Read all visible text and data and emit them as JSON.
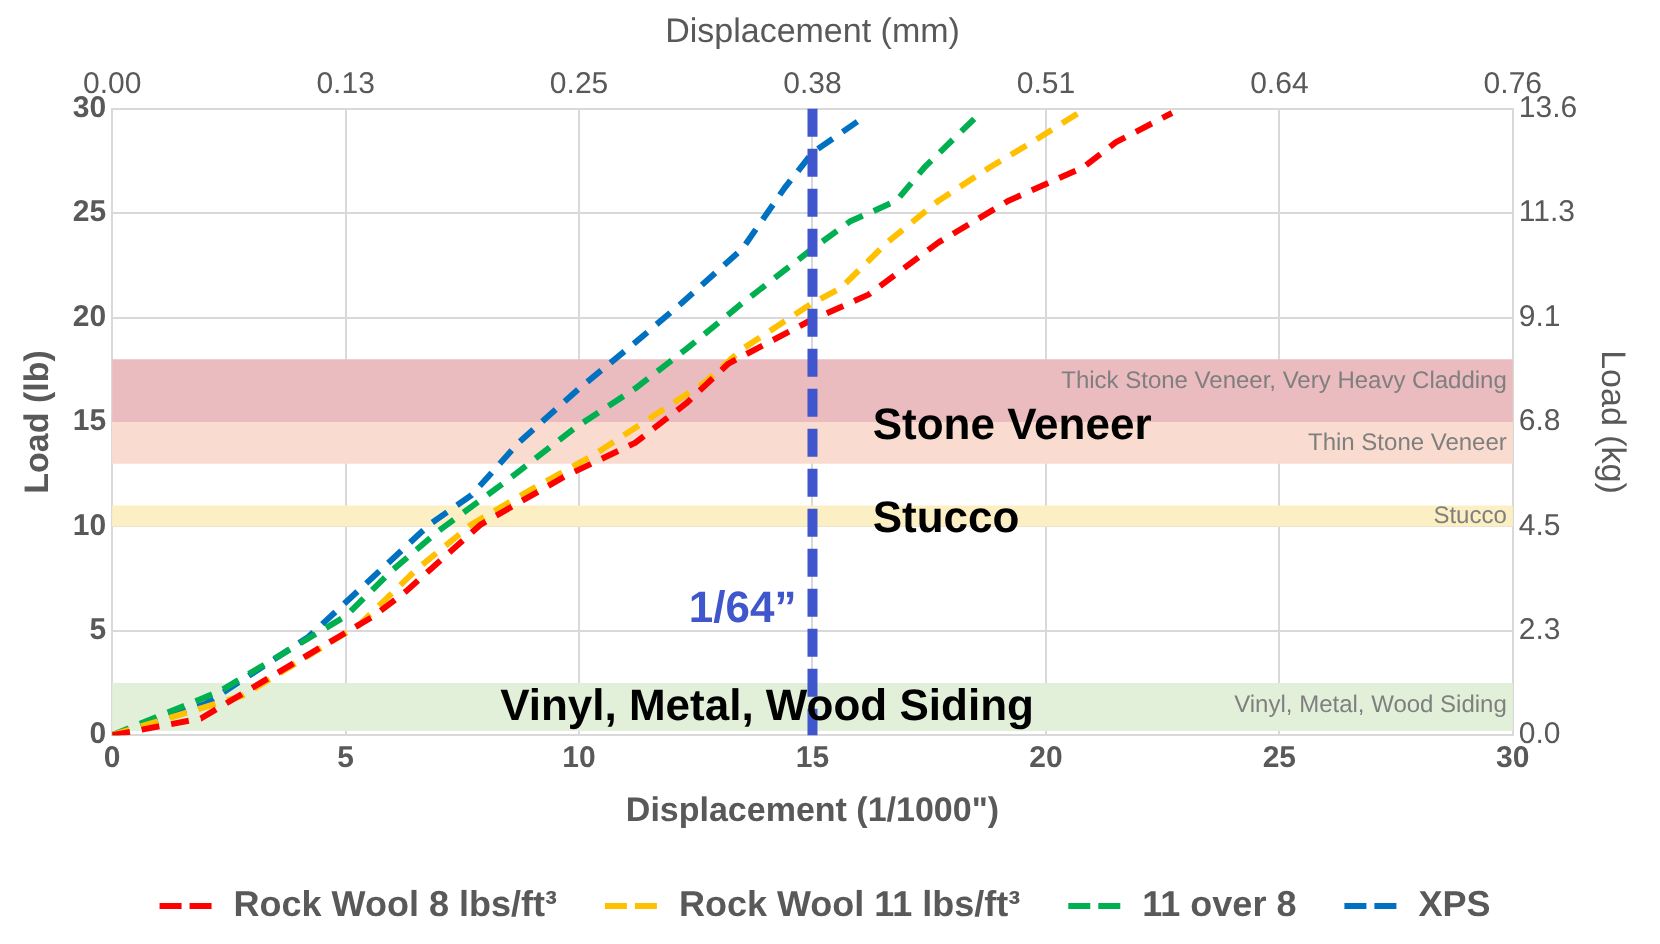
{
  "chart_data": {
    "type": "line",
    "xlabel": "Displacement (1/1000\")",
    "ylabel": "Load (lb)",
    "x2label": "Displacement (mm)",
    "y2label": "Load (kg)",
    "xlim": [
      0,
      30
    ],
    "xticks": [
      0,
      5,
      10,
      15,
      20,
      25,
      30
    ],
    "ylim": [
      0,
      30
    ],
    "yticks": [
      0,
      5,
      10,
      15,
      20,
      25,
      30
    ],
    "x2lim": [
      0,
      0.762
    ],
    "x2ticks": [
      {
        "value": 0,
        "label": "0.00"
      },
      {
        "value": 0.127,
        "label": "0.13"
      },
      {
        "value": 0.254,
        "label": "0.25"
      },
      {
        "value": 0.381,
        "label": "0.38"
      },
      {
        "value": 0.508,
        "label": "0.51"
      },
      {
        "value": 0.635,
        "label": "0.64"
      },
      {
        "value": 0.762,
        "label": "0.76"
      }
    ],
    "y2lim": [
      0,
      13.608
    ],
    "y2ticks": [
      {
        "value": 0,
        "label": "0.0"
      },
      {
        "value": 2.268,
        "label": "2.3"
      },
      {
        "value": 4.536,
        "label": "4.5"
      },
      {
        "value": 6.804,
        "label": "6.8"
      },
      {
        "value": 9.072,
        "label": "9.1"
      },
      {
        "value": 11.34,
        "label": "11.3"
      },
      {
        "value": 13.608,
        "label": "13.6"
      }
    ],
    "grid": true,
    "legend": "bottom",
    "line_style": "dashed",
    "marker": "none",
    "series": [
      {
        "name": "Rock Wool 8 lbs/ft³",
        "color": "#ff0000",
        "x": [
          0,
          1.9,
          3.4,
          5.6,
          6.3,
          7.9,
          9.7,
          11.2,
          12.3,
          13.2,
          14.9,
          16.2,
          17.7,
          19.2,
          20.8,
          21.5,
          22.7
        ],
        "values": [
          0,
          0.8,
          2.8,
          5.7,
          6.9,
          10.1,
          12.4,
          14.0,
          15.9,
          17.8,
          19.8,
          21.1,
          23.6,
          25.6,
          27.2,
          28.4,
          29.8
        ]
      },
      {
        "name": "Rock Wool 11 lbs/ft³",
        "color": "#ffc000",
        "x": [
          0,
          2.8,
          5.3,
          6.5,
          7.7,
          9.0,
          10.3,
          11.6,
          12.7,
          13.5,
          15.0,
          15.6,
          16.6,
          17.7,
          18.8,
          19.7,
          20.7
        ],
        "values": [
          0,
          1.9,
          5.3,
          7.9,
          10.1,
          11.8,
          13.4,
          15.3,
          16.9,
          18.5,
          20.7,
          21.4,
          23.6,
          25.6,
          27.2,
          28.4,
          29.8
        ]
      },
      {
        "name": "11 over 8",
        "color": "#00b050",
        "x": [
          0,
          2.3,
          5.0,
          6.0,
          7.0,
          8.4,
          9.9,
          11.2,
          12.3,
          13.5,
          15.0,
          15.8,
          16.8,
          17.4,
          18.5
        ],
        "values": [
          0,
          2.1,
          5.7,
          7.9,
          9.8,
          12.1,
          14.7,
          16.6,
          18.5,
          20.7,
          23.3,
          24.6,
          25.6,
          27.2,
          29.6
        ]
      },
      {
        "name": "XPS",
        "color": "#0070c0",
        "x": [
          0,
          2.0,
          4.2,
          5.6,
          6.8,
          7.7,
          8.7,
          10.0,
          11.2,
          12.2,
          13.5,
          14.4,
          15.0,
          16.1
        ],
        "values": [
          0,
          1.5,
          4.7,
          7.6,
          10.1,
          11.5,
          14.0,
          16.6,
          18.8,
          20.7,
          23.3,
          26.2,
          27.9,
          29.6
        ]
      }
    ],
    "bands": [
      {
        "axis": "y",
        "from": 15,
        "to": 18,
        "label": "Thick Stone Veneer, Very Heavy Cladding",
        "color": "#ebbcbf"
      },
      {
        "axis": "y",
        "from": 13,
        "to": 15,
        "label": "Thin Stone Veneer",
        "color": "#f9dccf"
      },
      {
        "axis": "y",
        "from": 10,
        "to": 11,
        "label": "Stucco",
        "color": "#fdefc4"
      },
      {
        "axis": "y",
        "from": 0.2,
        "to": 2.5,
        "label": "Vinyl, Metal, Wood Siding",
        "color": "#e2f0d9"
      }
    ],
    "ref_lines": [
      {
        "axis": "x",
        "value": 15,
        "label": "1/64”",
        "color": "#3f56cc",
        "line_style": "dashed"
      }
    ],
    "annotations": [
      "Stone Veneer",
      "Stucco",
      "Vinyl, Metal, Wood Siding"
    ]
  }
}
